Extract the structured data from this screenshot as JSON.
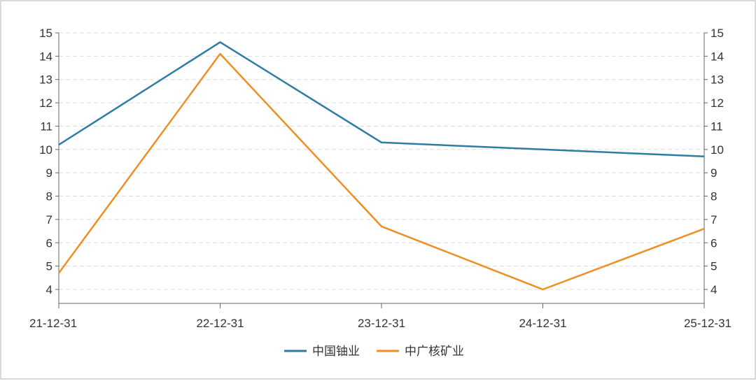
{
  "chart_data": {
    "type": "line",
    "categories": [
      "21-12-31",
      "22-12-31",
      "23-12-31",
      "24-12-31",
      "25-12-31"
    ],
    "series": [
      {
        "name": "中国铀业",
        "values": [
          10.2,
          14.6,
          10.3,
          10.0,
          9.7
        ],
        "color": "#2e7ca3"
      },
      {
        "name": "中广核矿业",
        "values": [
          4.7,
          14.1,
          6.7,
          4.0,
          6.6
        ],
        "color": "#ee8f25"
      }
    ],
    "y_ticks": [
      4,
      5,
      6,
      7,
      8,
      9,
      10,
      11,
      12,
      13,
      14,
      15
    ],
    "ylim": [
      3.4,
      15
    ],
    "grid": true,
    "grid_style": "dashed",
    "legend_position": "bottom-center",
    "dual_y_axis": true
  }
}
